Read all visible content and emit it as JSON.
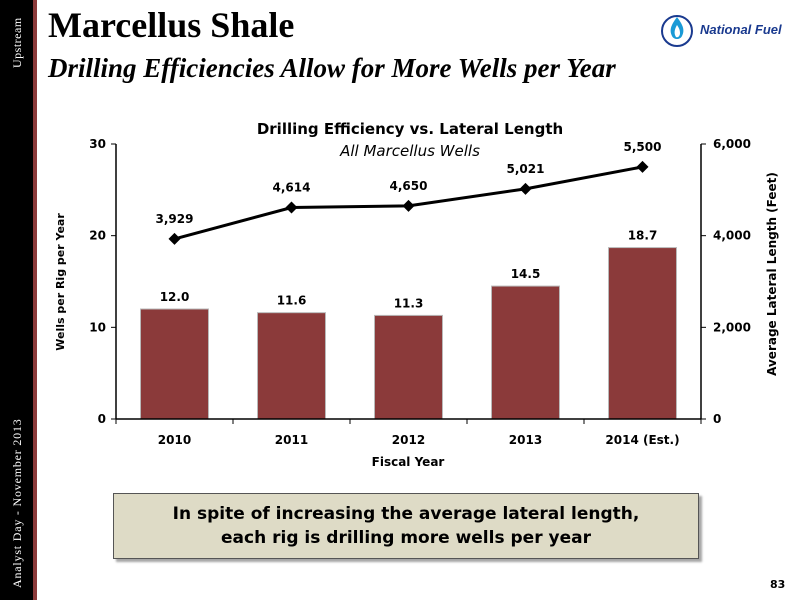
{
  "sidebar": {
    "top_label": "Upstream",
    "bottom_label": "Analyst Day - November 2013"
  },
  "header": {
    "title": "Marcellus Shale",
    "subtitle": "Drilling Efficiencies Allow for More Wells per Year",
    "logo_text": "National Fuel",
    "logo_icon": "flame-drop-icon"
  },
  "colors": {
    "bar": "#8b3a3a",
    "line": "#000000",
    "sidebar": "#000000",
    "accent": "#8b3a3a",
    "callout_bg": "#dedbc6",
    "logo": "#1a3a8f"
  },
  "chart_data": {
    "type": "bar",
    "title": "Drilling Efficiency vs. Lateral Length",
    "subtitle": "All Marcellus Wells",
    "xlabel": "Fiscal Year",
    "ylabel": "Wells per Rig per Year",
    "y2label": "Average Lateral Length (Feet)",
    "categories": [
      "2010",
      "2011",
      "2012",
      "2013",
      "2014 (Est.)"
    ],
    "ylim": [
      0,
      30
    ],
    "y2lim": [
      0,
      6000
    ],
    "yticks": [
      "0",
      "10",
      "20",
      "30"
    ],
    "y2ticks": [
      "0",
      "2,000",
      "4,000",
      "6,000"
    ],
    "series": [
      {
        "type": "bar",
        "axis": "left",
        "values": [
          12.0,
          11.6,
          11.3,
          14.5,
          18.7
        ],
        "labels": [
          "12.0",
          "11.6",
          "11.3",
          "14.5",
          "18.7"
        ]
      },
      {
        "type": "line",
        "axis": "right",
        "values": [
          3929,
          4614,
          4650,
          5021,
          5500
        ],
        "labels": [
          "3,929",
          "4,614",
          "4,650",
          "5,021",
          "5,500"
        ]
      }
    ],
    "grid": false
  },
  "callout": {
    "text": "In spite of increasing the average lateral length, each rig is drilling more wells per year"
  },
  "footer": {
    "page_number": "83"
  }
}
